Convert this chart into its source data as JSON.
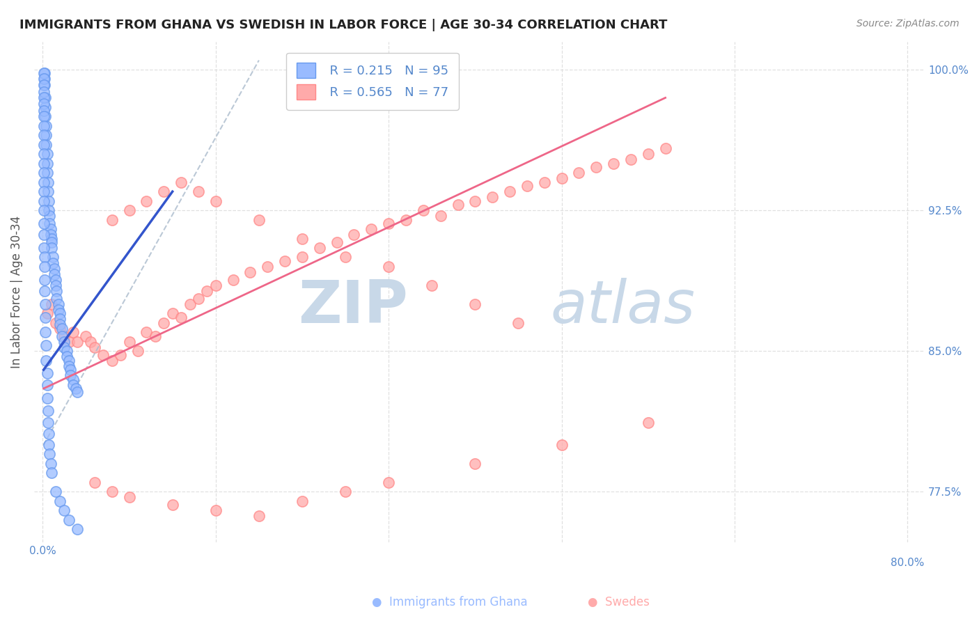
{
  "title": "IMMIGRANTS FROM GHANA VS SWEDISH IN LABOR FORCE | AGE 30-34 CORRELATION CHART",
  "source_text": "Source: ZipAtlas.com",
  "ylabel": "In Labor Force | Age 30-34",
  "legend_label_blue": "Immigrants from Ghana",
  "legend_label_pink": "Swedes",
  "r_blue": 0.215,
  "n_blue": 95,
  "r_pink": 0.565,
  "n_pink": 77,
  "xlim": [
    -0.01,
    1.02
  ],
  "ylim": [
    0.748,
    1.015
  ],
  "ytick_positions": [
    0.775,
    0.85,
    0.925,
    1.0
  ],
  "ytick_right_labels": [
    "77.5%",
    "85.0%",
    "92.5%",
    "100.0%"
  ],
  "xtick_label_left": "0.0%",
  "xtick_label_right": "80.0%",
  "color_blue_fill": "#99BBFF",
  "color_blue_edge": "#6699EE",
  "color_pink_fill": "#FFAAAA",
  "color_pink_edge": "#FF8888",
  "color_line_blue": "#3355CC",
  "color_line_pink": "#EE6688",
  "color_line_gray": "#AABBCC",
  "watermark_zip": "ZIP",
  "watermark_atlas": "atlas",
  "watermark_color": "#C8D8E8",
  "background_color": "#FFFFFF",
  "grid_color": "#DDDDDD",
  "axis_color": "#5588CC",
  "title_color": "#222222",
  "source_color": "#888888",
  "ylabel_color": "#555555",
  "blue_x": [
    0.002,
    0.002,
    0.002,
    0.003,
    0.003,
    0.003,
    0.004,
    0.004,
    0.004,
    0.005,
    0.005,
    0.005,
    0.006,
    0.006,
    0.007,
    0.007,
    0.008,
    0.008,
    0.009,
    0.009,
    0.01,
    0.01,
    0.01,
    0.012,
    0.012,
    0.013,
    0.013,
    0.015,
    0.015,
    0.016,
    0.016,
    0.018,
    0.018,
    0.02,
    0.02,
    0.02,
    0.022,
    0.022,
    0.025,
    0.025,
    0.028,
    0.028,
    0.03,
    0.03,
    0.032,
    0.032,
    0.035,
    0.035,
    0.038,
    0.04,
    0.001,
    0.001,
    0.001,
    0.001,
    0.001,
    0.001,
    0.001,
    0.001,
    0.001,
    0.001,
    0.001,
    0.001,
    0.001,
    0.001,
    0.001,
    0.001,
    0.001,
    0.001,
    0.001,
    0.001,
    0.001,
    0.002,
    0.002,
    0.002,
    0.002,
    0.003,
    0.003,
    0.003,
    0.004,
    0.004,
    0.005,
    0.005,
    0.005,
    0.006,
    0.006,
    0.007,
    0.007,
    0.008,
    0.009,
    0.01,
    0.015,
    0.02,
    0.025,
    0.03,
    0.04
  ],
  "blue_y": [
    0.998,
    0.995,
    0.992,
    0.985,
    0.98,
    0.975,
    0.97,
    0.965,
    0.96,
    0.955,
    0.95,
    0.945,
    0.94,
    0.935,
    0.93,
    0.925,
    0.922,
    0.918,
    0.915,
    0.912,
    0.91,
    0.908,
    0.905,
    0.9,
    0.897,
    0.894,
    0.891,
    0.888,
    0.885,
    0.882,
    0.878,
    0.875,
    0.872,
    0.87,
    0.867,
    0.864,
    0.862,
    0.858,
    0.855,
    0.852,
    0.85,
    0.847,
    0.845,
    0.842,
    0.84,
    0.837,
    0.835,
    0.832,
    0.83,
    0.828,
    0.998,
    0.995,
    0.992,
    0.988,
    0.985,
    0.982,
    0.978,
    0.975,
    0.97,
    0.965,
    0.96,
    0.955,
    0.95,
    0.945,
    0.94,
    0.935,
    0.93,
    0.925,
    0.918,
    0.912,
    0.905,
    0.9,
    0.895,
    0.888,
    0.882,
    0.875,
    0.868,
    0.86,
    0.853,
    0.845,
    0.838,
    0.832,
    0.825,
    0.818,
    0.812,
    0.806,
    0.8,
    0.795,
    0.79,
    0.785,
    0.775,
    0.77,
    0.765,
    0.76,
    0.755
  ],
  "pink_x": [
    0.005,
    0.01,
    0.015,
    0.02,
    0.025,
    0.03,
    0.035,
    0.04,
    0.05,
    0.055,
    0.06,
    0.07,
    0.08,
    0.09,
    0.1,
    0.11,
    0.12,
    0.13,
    0.14,
    0.15,
    0.16,
    0.17,
    0.18,
    0.19,
    0.2,
    0.22,
    0.24,
    0.26,
    0.28,
    0.3,
    0.32,
    0.34,
    0.36,
    0.38,
    0.4,
    0.42,
    0.44,
    0.46,
    0.48,
    0.5,
    0.52,
    0.54,
    0.56,
    0.58,
    0.6,
    0.62,
    0.64,
    0.66,
    0.68,
    0.7,
    0.72,
    0.08,
    0.1,
    0.12,
    0.14,
    0.16,
    0.18,
    0.2,
    0.25,
    0.3,
    0.35,
    0.4,
    0.45,
    0.5,
    0.55,
    0.06,
    0.08,
    0.1,
    0.15,
    0.2,
    0.25,
    0.3,
    0.35,
    0.4,
    0.5,
    0.6,
    0.7
  ],
  "pink_y": [
    0.87,
    0.875,
    0.865,
    0.862,
    0.858,
    0.855,
    0.86,
    0.855,
    0.858,
    0.855,
    0.852,
    0.848,
    0.845,
    0.848,
    0.855,
    0.85,
    0.86,
    0.858,
    0.865,
    0.87,
    0.868,
    0.875,
    0.878,
    0.882,
    0.885,
    0.888,
    0.892,
    0.895,
    0.898,
    0.9,
    0.905,
    0.908,
    0.912,
    0.915,
    0.918,
    0.92,
    0.925,
    0.922,
    0.928,
    0.93,
    0.932,
    0.935,
    0.938,
    0.94,
    0.942,
    0.945,
    0.948,
    0.95,
    0.952,
    0.955,
    0.958,
    0.92,
    0.925,
    0.93,
    0.935,
    0.94,
    0.935,
    0.93,
    0.92,
    0.91,
    0.9,
    0.895,
    0.885,
    0.875,
    0.865,
    0.78,
    0.775,
    0.772,
    0.768,
    0.765,
    0.762,
    0.77,
    0.775,
    0.78,
    0.79,
    0.8,
    0.812
  ],
  "blue_line_x": [
    0.001,
    0.15
  ],
  "blue_line_y": [
    0.84,
    0.935
  ],
  "pink_line_x": [
    0.001,
    0.72
  ],
  "pink_line_y": [
    0.83,
    0.985
  ],
  "gray_line_x": [
    0.001,
    0.25
  ],
  "gray_line_y": [
    0.8,
    1.005
  ]
}
